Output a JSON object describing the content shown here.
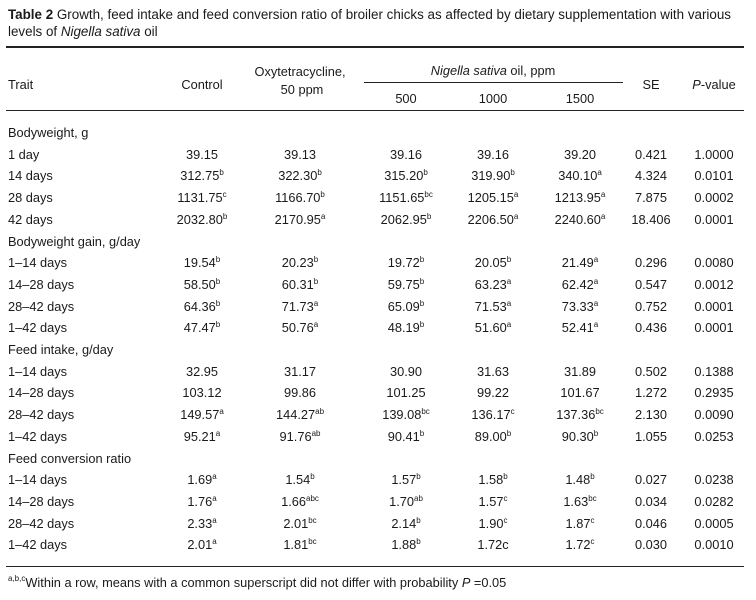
{
  "caption": {
    "label": "Table 2",
    "text_before_italic": " Growth, feed intake and feed conversion ratio of broiler chicks as affected by dietary supplementation with various levels of ",
    "italic": "Nigella sativa",
    "text_after_italic": " oil"
  },
  "header": {
    "trait": "Trait",
    "control": "Control",
    "oxy_line1": "Oxytetracycline,",
    "oxy_line2": "50 ppm",
    "nigella_italic": "Nigella sativa",
    "nigella_rest": " oil, ppm",
    "dose_500": "500",
    "dose_1000": "1000",
    "dose_1500": "1500",
    "se": "SE",
    "pvalue_italic": "P",
    "pvalue_rest": "-value"
  },
  "rows": [
    {
      "type": "section",
      "label": "Bodyweight, g"
    },
    {
      "type": "data",
      "label": "1 day",
      "cells": [
        [
          "39.15",
          ""
        ],
        [
          "39.13",
          ""
        ],
        [
          "39.16",
          ""
        ],
        [
          "39.16",
          ""
        ],
        [
          "39.20",
          ""
        ]
      ],
      "se": "0.421",
      "p": "1.0000"
    },
    {
      "type": "data",
      "label": "14 days",
      "cells": [
        [
          "312.75",
          "b"
        ],
        [
          "322.30",
          "b"
        ],
        [
          "315.20",
          "b"
        ],
        [
          "319.90",
          "b"
        ],
        [
          "340.10",
          "a"
        ]
      ],
      "se": "4.324",
      "p": "0.0101"
    },
    {
      "type": "data",
      "label": "28 days",
      "cells": [
        [
          "1131.75",
          "c"
        ],
        [
          "1166.70",
          "b"
        ],
        [
          "1151.65",
          "bc"
        ],
        [
          "1205.15",
          "a"
        ],
        [
          "1213.95",
          "a"
        ]
      ],
      "se": "7.875",
      "p": "0.0002"
    },
    {
      "type": "data",
      "label": "42 days",
      "cells": [
        [
          "2032.80",
          "b"
        ],
        [
          "2170.95",
          "a"
        ],
        [
          "2062.95",
          "b"
        ],
        [
          "2206.50",
          "a"
        ],
        [
          "2240.60",
          "a"
        ]
      ],
      "se": "18.406",
      "p": "0.0001"
    },
    {
      "type": "section",
      "label": "Bodyweight gain, g/day"
    },
    {
      "type": "data",
      "label": "1–14 days",
      "cells": [
        [
          "19.54",
          "b"
        ],
        [
          "20.23",
          "b"
        ],
        [
          "19.72",
          "b"
        ],
        [
          "20.05",
          "b"
        ],
        [
          "21.49",
          "a"
        ]
      ],
      "se": "0.296",
      "p": "0.0080"
    },
    {
      "type": "data",
      "label": "14–28 days",
      "cells": [
        [
          "58.50",
          "b"
        ],
        [
          "60.31",
          "b"
        ],
        [
          "59.75",
          "b"
        ],
        [
          "63.23",
          "a"
        ],
        [
          "62.42",
          "a"
        ]
      ],
      "se": "0.547",
      "p": "0.0012"
    },
    {
      "type": "data",
      "label": "28–42 days",
      "cells": [
        [
          "64.36",
          "b"
        ],
        [
          "71.73",
          "a"
        ],
        [
          "65.09",
          "b"
        ],
        [
          "71.53",
          "a"
        ],
        [
          "73.33",
          "a"
        ]
      ],
      "se": "0.752",
      "p": "0.0001"
    },
    {
      "type": "data",
      "label": "1–42 days",
      "cells": [
        [
          "47.47",
          "b"
        ],
        [
          "50.76",
          "a"
        ],
        [
          "48.19",
          "b"
        ],
        [
          "51.60",
          "a"
        ],
        [
          "52.41",
          "a"
        ]
      ],
      "se": "0.436",
      "p": "0.0001"
    },
    {
      "type": "section",
      "label": "Feed intake, g/day"
    },
    {
      "type": "data",
      "label": "1–14 days",
      "cells": [
        [
          "32.95",
          ""
        ],
        [
          "31.17",
          ""
        ],
        [
          "30.90",
          ""
        ],
        [
          "31.63",
          ""
        ],
        [
          "31.89",
          ""
        ]
      ],
      "se": "0.502",
      "p": "0.1388"
    },
    {
      "type": "data",
      "label": "14–28 days",
      "cells": [
        [
          "103.12",
          ""
        ],
        [
          "99.86",
          ""
        ],
        [
          "101.25",
          ""
        ],
        [
          "99.22",
          ""
        ],
        [
          "101.67",
          ""
        ]
      ],
      "se": "1.272",
      "p": "0.2935"
    },
    {
      "type": "data",
      "label": "28–42 days",
      "cells": [
        [
          "149.57",
          "a"
        ],
        [
          "144.27",
          "ab"
        ],
        [
          "139.08",
          "bc"
        ],
        [
          "136.17",
          "c"
        ],
        [
          "137.36",
          "bc"
        ]
      ],
      "se": "2.130",
      "p": "0.0090"
    },
    {
      "type": "data",
      "label": "1–42 days",
      "cells": [
        [
          "95.21",
          "a"
        ],
        [
          "91.76",
          "ab"
        ],
        [
          "90.41",
          "b"
        ],
        [
          "89.00",
          "b"
        ],
        [
          "90.30",
          "b"
        ]
      ],
      "se": "1.055",
      "p": "0.0253"
    },
    {
      "type": "section",
      "label": "Feed conversion ratio"
    },
    {
      "type": "data",
      "label": "1–14 days",
      "cells": [
        [
          "1.69",
          "a"
        ],
        [
          "1.54",
          "b"
        ],
        [
          "1.57",
          "b"
        ],
        [
          "1.58",
          "b"
        ],
        [
          "1.48",
          "b"
        ]
      ],
      "se": "0.027",
      "p": "0.0238"
    },
    {
      "type": "data",
      "label": "14–28 days",
      "cells": [
        [
          "1.76",
          "a"
        ],
        [
          "1.66",
          "abc"
        ],
        [
          "1.70",
          "ab"
        ],
        [
          "1.57",
          "c"
        ],
        [
          "1.63",
          "bc"
        ]
      ],
      "se": "0.034",
      "p": "0.0282"
    },
    {
      "type": "data",
      "label": "28–42 days",
      "cells": [
        [
          "2.33",
          "a"
        ],
        [
          "2.01",
          "bc"
        ],
        [
          "2.14",
          "b"
        ],
        [
          "1.90",
          "c"
        ],
        [
          "1.87",
          "c"
        ]
      ],
      "se": "0.046",
      "p": "0.0005"
    },
    {
      "type": "data",
      "label": "1–42 days",
      "cells": [
        [
          "2.01",
          "a"
        ],
        [
          "1.81",
          "bc"
        ],
        [
          "1.88",
          "b"
        ],
        [
          "1.72c",
          ""
        ],
        [
          "1.72",
          "c"
        ]
      ],
      "se": "0.030",
      "p": "0.0010"
    }
  ],
  "footnote": {
    "sup": "a,b,c",
    "text": "Within a row, means with a common superscript did not differ with probability ",
    "italic": "P",
    "tail": " =0.05"
  }
}
